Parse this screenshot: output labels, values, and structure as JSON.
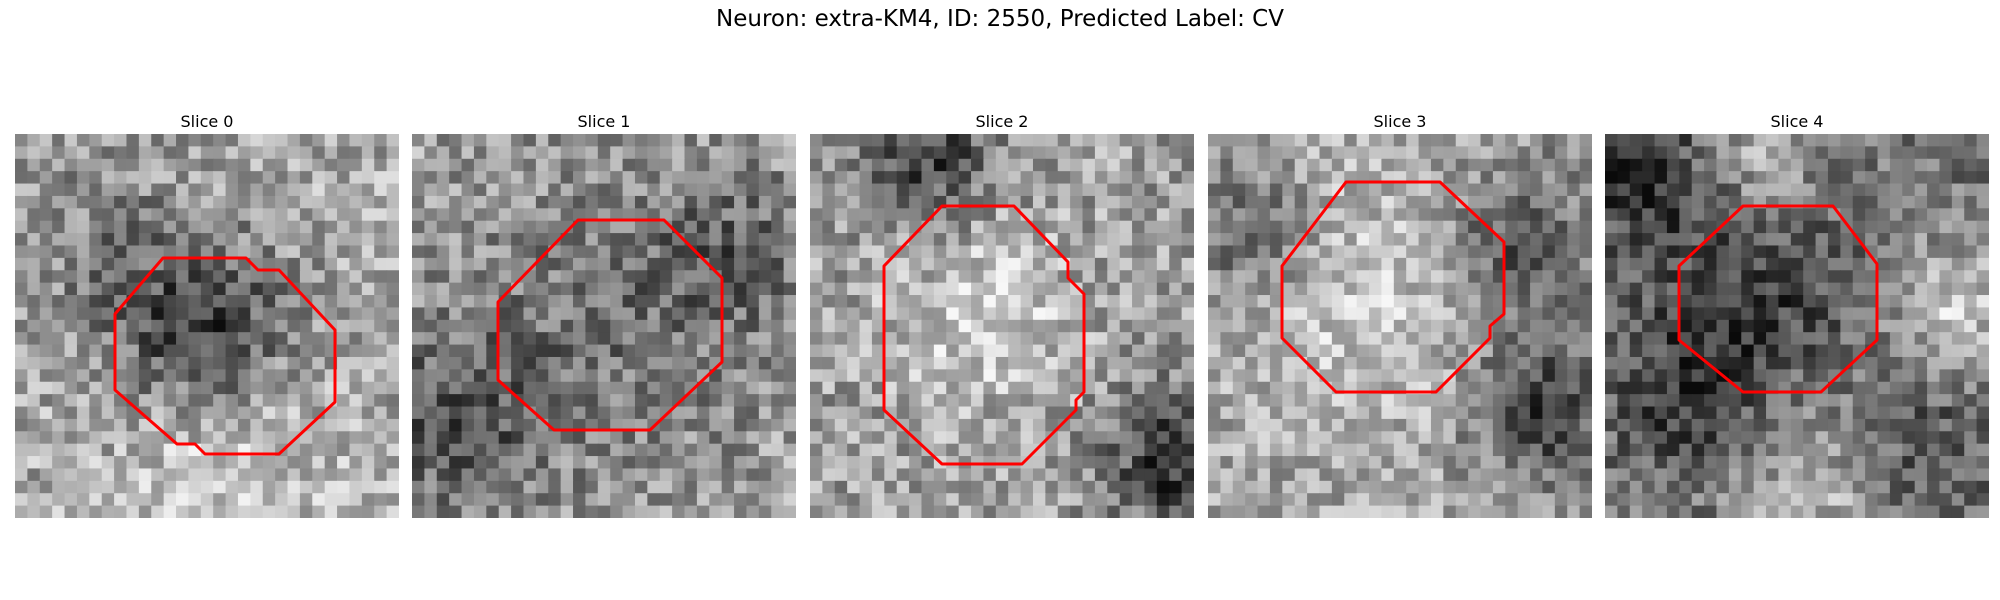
{
  "title": "Neuron: extra-KM4, ID: 2550, Predicted Label: CV",
  "colors": {
    "contour": "#ff0000",
    "background": "#ffffff"
  },
  "panels": [
    {
      "label": "Slice 0"
    },
    {
      "label": "Slice 1"
    },
    {
      "label": "Slice 2"
    },
    {
      "label": "Slice 3"
    },
    {
      "label": "Slice 4"
    }
  ]
}
